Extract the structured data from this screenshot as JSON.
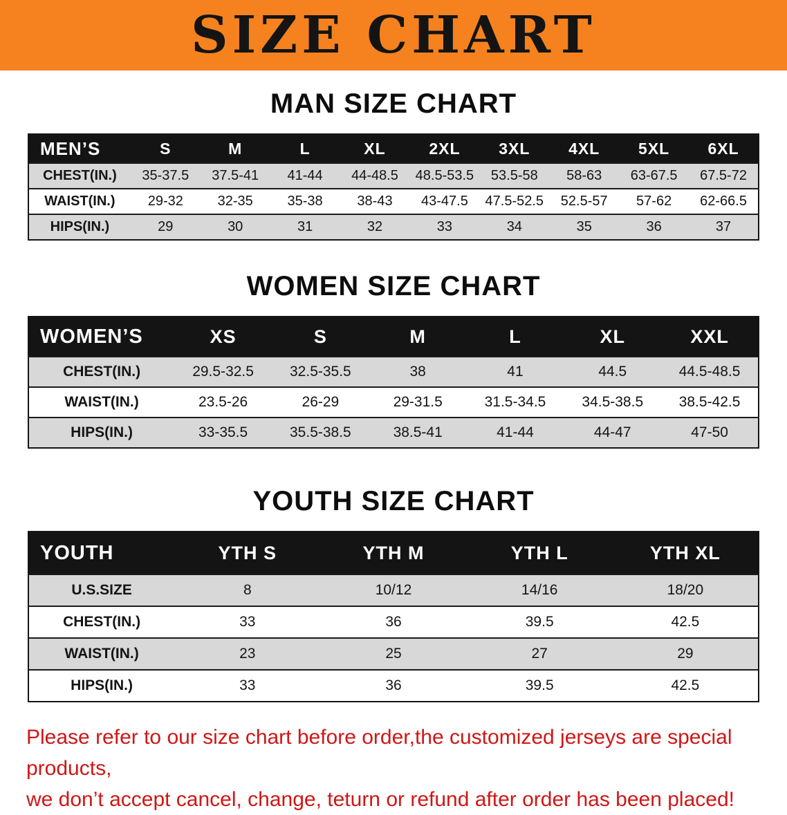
{
  "banner": {
    "title": "SIZE CHART",
    "bg_color": "#f5821f",
    "text_color": "#141414"
  },
  "sections": [
    {
      "id": "men",
      "heading": "MAN SIZE CHART",
      "table": {
        "header": [
          "MEN’S",
          "S",
          "M",
          "L",
          "XL",
          "2XL",
          "3XL",
          "4XL",
          "5XL",
          "6XL"
        ],
        "rows": [
          [
            "CHEST(IN.)",
            "35-37.5",
            "37.5-41",
            "41-44",
            "44-48.5",
            "48.5-53.5",
            "53.5-58",
            "58-63",
            "63-67.5",
            "67.5-72"
          ],
          [
            "WAIST(IN.)",
            "29-32",
            "32-35",
            "35-38",
            "38-43",
            "43-47.5",
            "47.5-52.5",
            "52.5-57",
            "57-62",
            "62-66.5"
          ],
          [
            "HIPS(IN.)",
            "29",
            "30",
            "31",
            "32",
            "33",
            "34",
            "35",
            "36",
            "37"
          ]
        ]
      }
    },
    {
      "id": "women",
      "heading": "WOMEN SIZE CHART",
      "table": {
        "header": [
          "WOMEN’S",
          "XS",
          "S",
          "M",
          "L",
          "XL",
          "XXL"
        ],
        "rows": [
          [
            "CHEST(IN.)",
            "29.5-32.5",
            "32.5-35.5",
            "38",
            "41",
            "44.5",
            "44.5-48.5"
          ],
          [
            "WAIST(IN.)",
            "23.5-26",
            "26-29",
            "29-31.5",
            "31.5-34.5",
            "34.5-38.5",
            "38.5-42.5"
          ],
          [
            "HIPS(IN.)",
            "33-35.5",
            "35.5-38.5",
            "38.5-41",
            "41-44",
            "44-47",
            "47-50"
          ]
        ]
      }
    },
    {
      "id": "youth",
      "heading": "YOUTH SIZE CHART",
      "table": {
        "header": [
          "YOUTH",
          "YTH S",
          "YTH M",
          "YTH L",
          "YTH XL"
        ],
        "rows": [
          [
            "U.S.SIZE",
            "8",
            "10/12",
            "14/16",
            "18/20"
          ],
          [
            "CHEST(IN.)",
            "33",
            "36",
            "39.5",
            "42.5"
          ],
          [
            "WAIST(IN.)",
            "23",
            "25",
            "27",
            "29"
          ],
          [
            "HIPS(IN.)",
            "33",
            "36",
            "39.5",
            "42.5"
          ]
        ]
      }
    }
  ],
  "disclaimer": {
    "color": "#d01616",
    "lines": [
      "Please refer to our size chart before order,the customized jerseys are special products,",
      "we don’t accept cancel, change, teturn or refund after order has been placed!"
    ]
  }
}
